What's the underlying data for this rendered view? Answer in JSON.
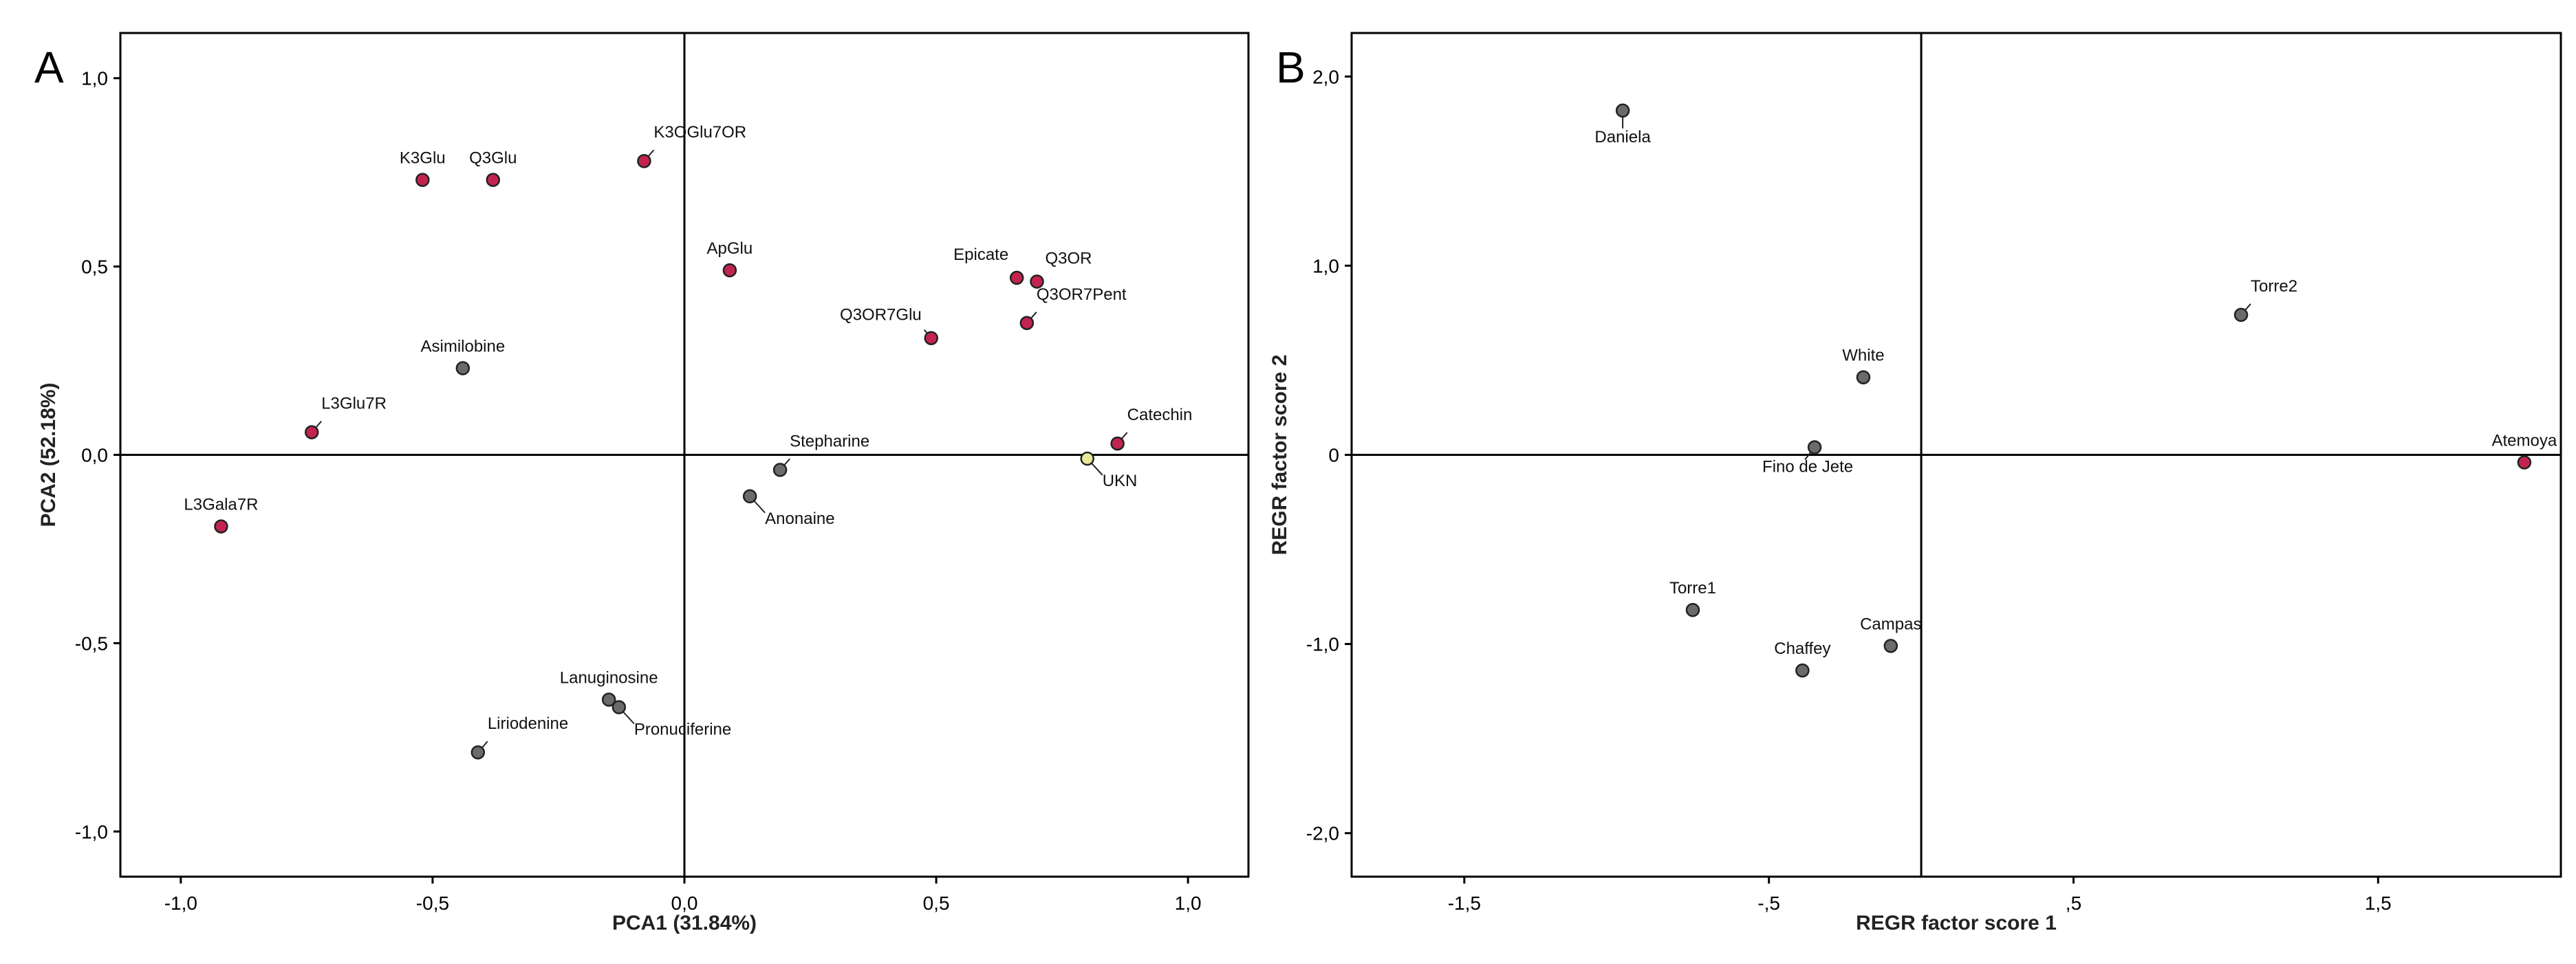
{
  "colors": {
    "polyphenol": "#c2244f",
    "alkaloid": "#6b6b6b",
    "unknown": "#e9e79a",
    "sample": "#6b6b6b",
    "highlight": "#c2244f"
  },
  "chart_data": [
    {
      "type": "scatter",
      "panel": "A",
      "xlabel": "PCA1 (31.84%)",
      "ylabel": "PCA2 (52.18%)",
      "xlim": [
        -1.12,
        1.12
      ],
      "ylim": [
        -1.12,
        1.12
      ],
      "xticks": [
        -1.0,
        -0.5,
        0.0,
        0.5,
        1.0
      ],
      "xtick_labels": [
        "-1,0",
        "-0,5",
        "0,0",
        "0,5",
        "1,0"
      ],
      "yticks": [
        1.0,
        0.5,
        0.0,
        -0.5,
        -1.0
      ],
      "ytick_labels": [
        "1,0",
        "0,5",
        "0,0",
        "-0,5",
        "-1,0"
      ],
      "points": [
        {
          "label": "K3Glu",
          "x": -0.52,
          "y": 0.73,
          "group": "polyphenol",
          "label_pos": "above"
        },
        {
          "label": "Q3Glu",
          "x": -0.38,
          "y": 0.73,
          "group": "polyphenol",
          "label_pos": "above"
        },
        {
          "label": "K3OGlu7OR",
          "x": -0.08,
          "y": 0.78,
          "group": "polyphenol",
          "label_pos": "upper-right"
        },
        {
          "label": "ApGlu",
          "x": 0.09,
          "y": 0.49,
          "group": "polyphenol",
          "label_pos": "above"
        },
        {
          "label": "Epicate",
          "x": 0.66,
          "y": 0.47,
          "group": "polyphenol",
          "label_pos": "above-left"
        },
        {
          "label": "Q3OR",
          "x": 0.7,
          "y": 0.46,
          "group": "polyphenol",
          "label_pos": "above-right"
        },
        {
          "label": "Q3OR7Glu",
          "x": 0.49,
          "y": 0.31,
          "group": "polyphenol",
          "label_pos": "upper-left"
        },
        {
          "label": "Q3OR7Pent",
          "x": 0.68,
          "y": 0.35,
          "group": "polyphenol",
          "label_pos": "upper-right"
        },
        {
          "label": "Asimilobine",
          "x": -0.44,
          "y": 0.23,
          "group": "alkaloid",
          "label_pos": "above"
        },
        {
          "label": "L3Glu7R",
          "x": -0.74,
          "y": 0.06,
          "group": "polyphenol",
          "label_pos": "upper-right"
        },
        {
          "label": "Catechin",
          "x": 0.86,
          "y": 0.03,
          "group": "polyphenol",
          "label_pos": "upper-right"
        },
        {
          "label": "UKN",
          "x": 0.8,
          "y": -0.01,
          "group": "unknown",
          "label_pos": "lower-right"
        },
        {
          "label": "Stepharine",
          "x": 0.19,
          "y": -0.04,
          "group": "alkaloid",
          "label_pos": "upper-right"
        },
        {
          "label": "Anonaine",
          "x": 0.13,
          "y": -0.11,
          "group": "alkaloid",
          "label_pos": "lower-right"
        },
        {
          "label": "L3Gala7R",
          "x": -0.92,
          "y": -0.19,
          "group": "polyphenol",
          "label_pos": "above"
        },
        {
          "label": "Lanuginosine",
          "x": -0.15,
          "y": -0.65,
          "group": "alkaloid",
          "label_pos": "above"
        },
        {
          "label": "Pronuciferine",
          "x": -0.13,
          "y": -0.67,
          "group": "alkaloid",
          "label_pos": "lower-right"
        },
        {
          "label": "Liriodenine",
          "x": -0.41,
          "y": -0.79,
          "group": "alkaloid",
          "label_pos": "upper-right"
        }
      ]
    },
    {
      "type": "scatter",
      "panel": "B",
      "xlabel": "REGR factor score 1",
      "ylabel": "REGR factor score 2",
      "xlim": [
        -1.87,
        2.1
      ],
      "ylim": [
        -2.23,
        2.23
      ],
      "xticks": [
        -1.5,
        -0.5,
        0.5,
        1.5
      ],
      "xtick_labels": [
        "-1,5",
        "-,5",
        ",5",
        "1,5"
      ],
      "yticks": [
        2.0,
        1.0,
        0.0,
        -1.0,
        -2.0
      ],
      "ytick_labels": [
        "2,0",
        "1,0",
        "0",
        "-1,0",
        "-2,0"
      ],
      "points": [
        {
          "label": "Daniela",
          "x": -0.98,
          "y": 1.82,
          "group": "sample",
          "label_pos": "below"
        },
        {
          "label": "Torre2",
          "x": 1.05,
          "y": 0.74,
          "group": "sample",
          "label_pos": "upper-right"
        },
        {
          "label": "White",
          "x": -0.19,
          "y": 0.41,
          "group": "sample",
          "label_pos": "above"
        },
        {
          "label": "Fino de Jete",
          "x": -0.35,
          "y": 0.04,
          "group": "sample",
          "label_pos": "lower-left"
        },
        {
          "label": "Atemoya",
          "x": 1.98,
          "y": -0.04,
          "group": "highlight",
          "label_pos": "above"
        },
        {
          "label": "Torre1",
          "x": -0.75,
          "y": -0.82,
          "group": "sample",
          "label_pos": "above"
        },
        {
          "label": "Campas",
          "x": -0.1,
          "y": -1.01,
          "group": "sample",
          "label_pos": "above"
        },
        {
          "label": "Chaffey",
          "x": -0.39,
          "y": -1.14,
          "group": "sample",
          "label_pos": "above"
        }
      ]
    }
  ]
}
